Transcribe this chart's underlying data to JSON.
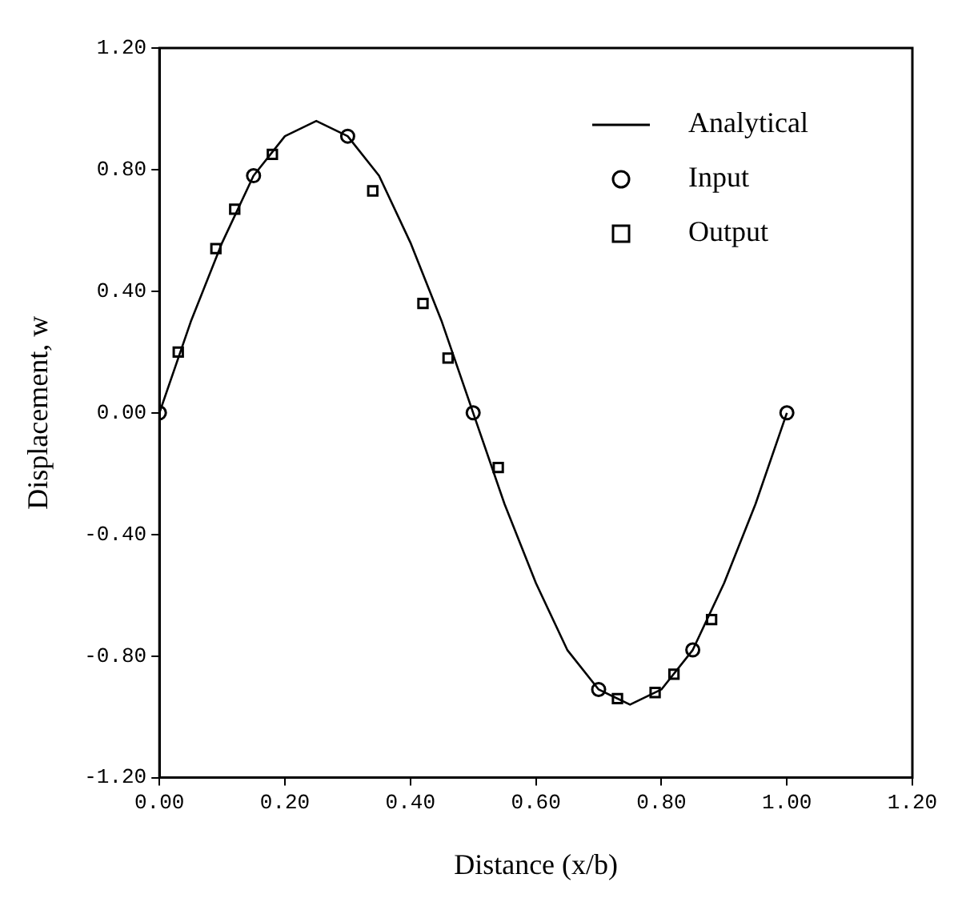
{
  "chart_data": {
    "type": "line",
    "xlabel": "Distance (x/b)",
    "ylabel": "Displacement, w",
    "xlim": [
      0,
      1.2
    ],
    "ylim": [
      -1.2,
      1.2
    ],
    "xticks": [
      {
        "value": 0,
        "label": "0.00"
      },
      {
        "value": 0.2,
        "label": "0.20"
      },
      {
        "value": 0.4,
        "label": "0.40"
      },
      {
        "value": 0.6,
        "label": "0.60"
      },
      {
        "value": 0.8,
        "label": "0.80"
      },
      {
        "value": 1,
        "label": "1.00"
      },
      {
        "value": 1.2,
        "label": "1.20"
      }
    ],
    "yticks": [
      {
        "value": -1.2,
        "label": "-1.20"
      },
      {
        "value": -0.8,
        "label": "-0.80"
      },
      {
        "value": -0.4,
        "label": "-0.40"
      },
      {
        "value": 0,
        "label": "0.00"
      },
      {
        "value": 0.4,
        "label": "0.40"
      },
      {
        "value": 0.8,
        "label": "0.80"
      },
      {
        "value": 1.2,
        "label": "1.20"
      }
    ],
    "grid": false,
    "legend": "top right",
    "series": [
      {
        "name": "Analytical",
        "color": "#000000",
        "marker": "none",
        "line_style": "solid",
        "x": [
          0,
          0.05,
          0.1,
          0.15,
          0.2,
          0.25,
          0.3,
          0.35,
          0.4,
          0.45,
          0.5,
          0.55,
          0.6,
          0.65,
          0.7,
          0.75,
          0.8,
          0.85,
          0.9,
          0.95,
          1
        ],
        "values": [
          0,
          0.3,
          0.56,
          0.78,
          0.91,
          0.96,
          0.91,
          0.78,
          0.56,
          0.3,
          0,
          -0.3,
          -0.56,
          -0.78,
          -0.91,
          -0.96,
          -0.91,
          -0.78,
          -0.56,
          -0.3,
          0
        ]
      },
      {
        "name": "Input",
        "type": "scatter",
        "color": "#000000",
        "marker": "circle",
        "x": [
          0,
          0.15,
          0.3,
          0.5,
          0.7,
          0.85,
          1
        ],
        "values": [
          0,
          0.78,
          0.91,
          0,
          -0.91,
          -0.78,
          0
        ]
      },
      {
        "name": "Output",
        "type": "scatter",
        "color": "#000000",
        "marker": "square",
        "x": [
          0.03,
          0.09,
          0.12,
          0.18,
          0.34,
          0.42,
          0.46,
          0.54,
          0.73,
          0.79,
          0.82,
          0.88
        ],
        "values": [
          0.2,
          0.54,
          0.67,
          0.85,
          0.73,
          0.36,
          0.18,
          -0.18,
          -0.94,
          -0.92,
          -0.86,
          -0.68
        ]
      }
    ]
  }
}
